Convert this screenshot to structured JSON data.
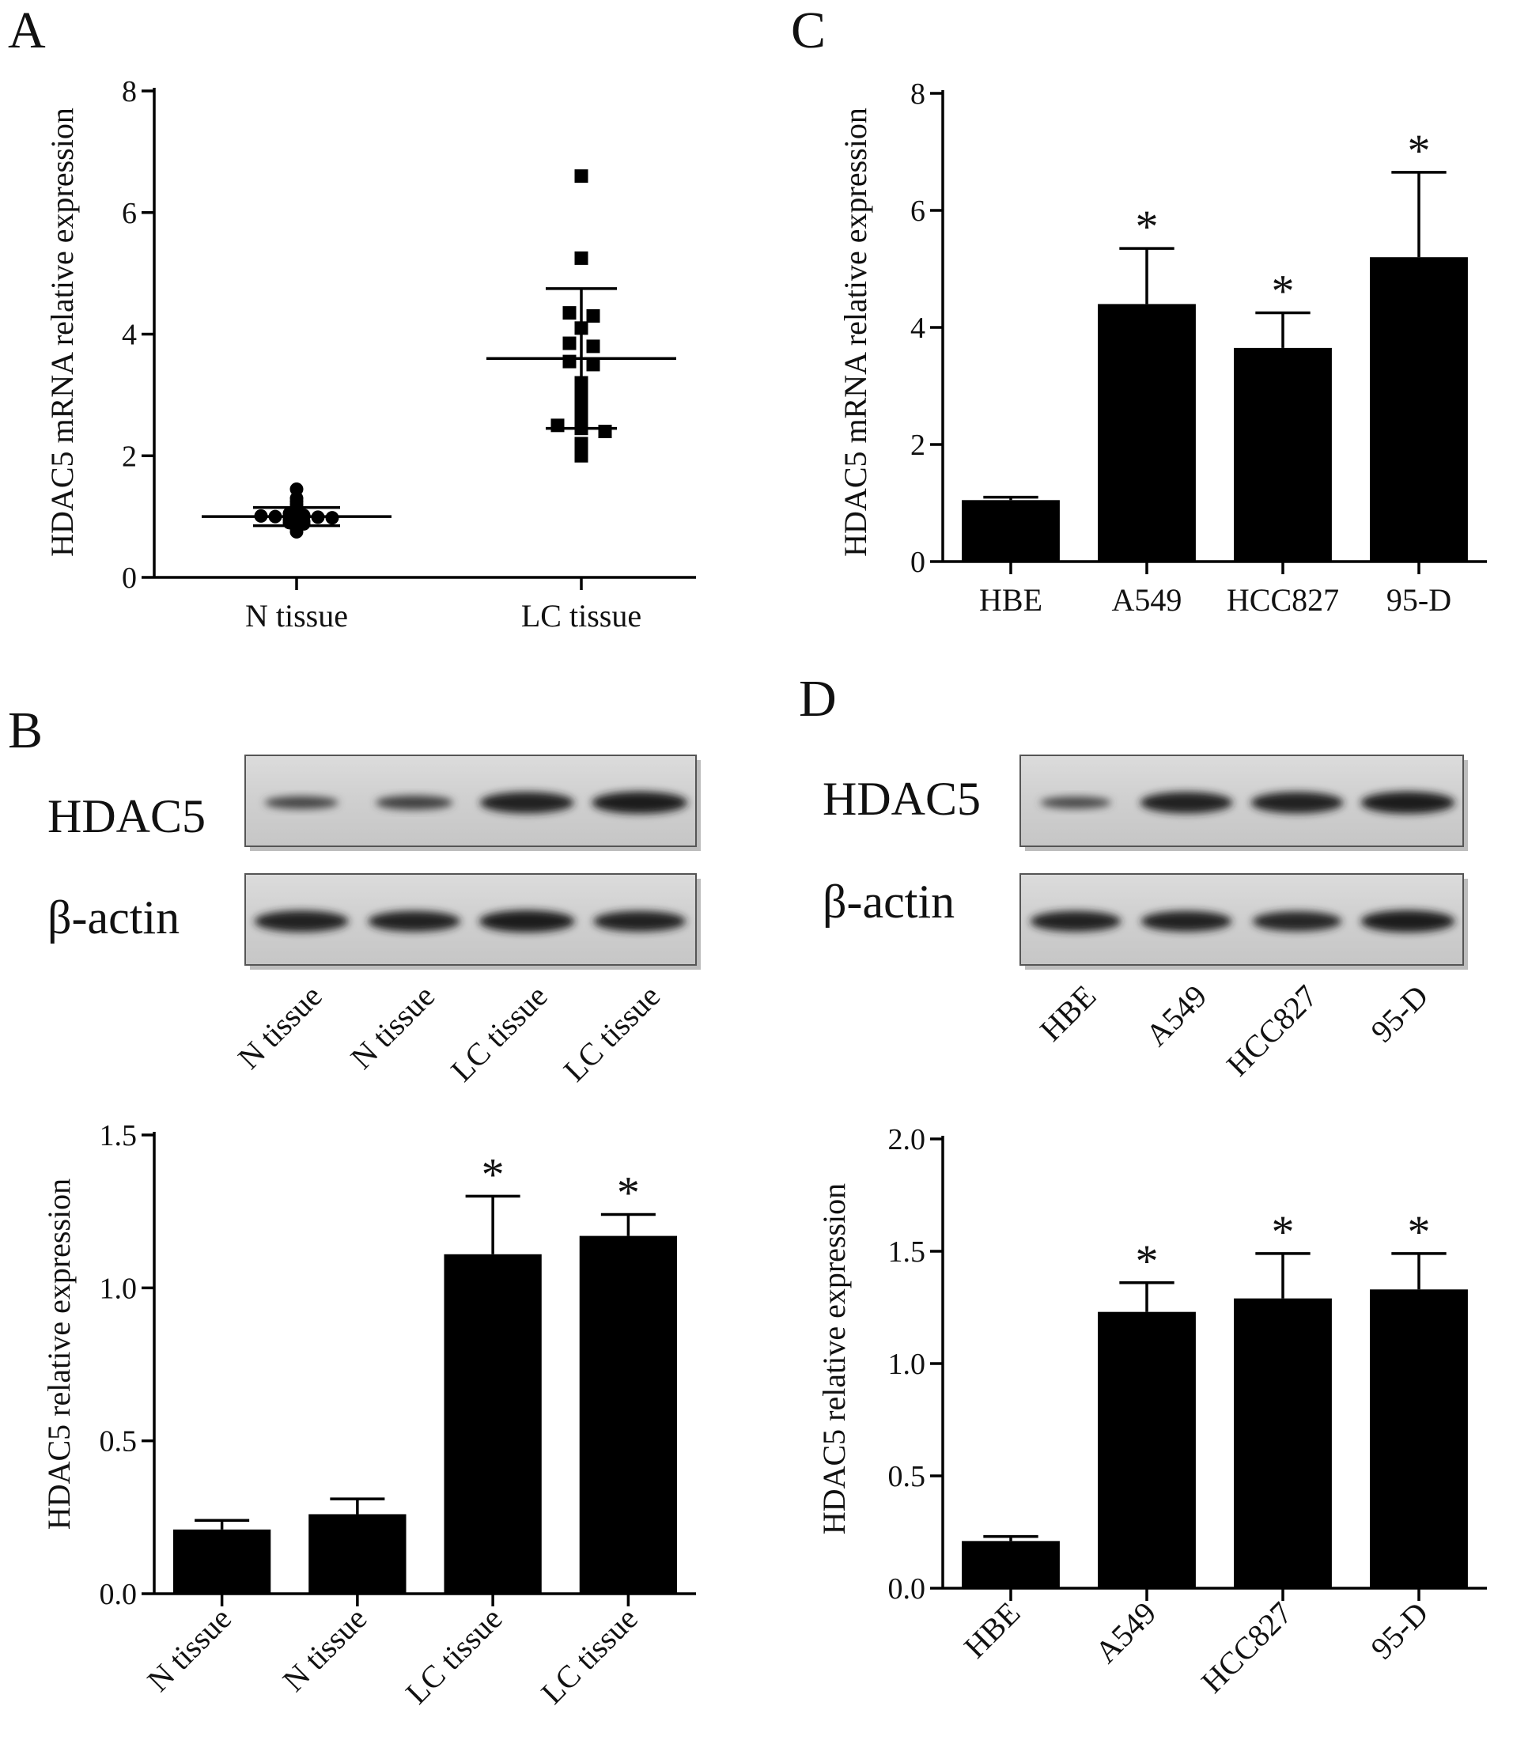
{
  "panels": {
    "A": "A",
    "B": "B",
    "C": "C",
    "D": "D"
  },
  "colors": {
    "bar": "#000000",
    "blot_bg": "#d2d2d2",
    "band": "#101010"
  },
  "chart_data": [
    {
      "panel": "A",
      "type": "scatter",
      "categories": [
        "N tissue",
        "LC tissue"
      ],
      "ylabel": "HDAC5 mRNA  relative  expression",
      "ylim": [
        0,
        8
      ],
      "yticks": [
        0,
        2,
        4,
        6,
        8
      ],
      "series": [
        {
          "marker": "circle",
          "category": "N tissue",
          "values": [
            1.45,
            1.3,
            1.25,
            1.2,
            1.15,
            1.1,
            1.05,
            1.02,
            1.01,
            1.0,
            1.0,
            1.0,
            0.99,
            0.98,
            0.95,
            0.92,
            0.9,
            0.88,
            0.85,
            0.8,
            0.75
          ],
          "mean": 1.0,
          "sd": 0.15
        },
        {
          "marker": "square",
          "category": "LC tissue",
          "values": [
            6.6,
            5.25,
            4.35,
            4.3,
            4.1,
            3.85,
            3.8,
            3.55,
            3.5,
            3.2,
            3.0,
            2.8,
            2.65,
            2.5,
            2.45,
            2.4,
            2.2,
            2.0
          ],
          "mean": 3.6,
          "sd": 1.15
        }
      ]
    },
    {
      "panel": "B",
      "type": "bar",
      "blot": {
        "rows": [
          "HDAC5",
          "β-actin"
        ],
        "lanes": [
          "N tissue",
          "N tissue",
          "LC tissue",
          "LC tissue"
        ],
        "band_strength": {
          "HDAC5": [
            0.35,
            0.45,
            0.95,
            1.0
          ],
          "β-actin": [
            0.95,
            0.9,
            1.0,
            0.9
          ]
        }
      },
      "categories": [
        "N tissue",
        "N tissue",
        "LC tissue",
        "LC tissue"
      ],
      "values": [
        0.21,
        0.26,
        1.11,
        1.17
      ],
      "errors": [
        0.03,
        0.05,
        0.19,
        0.07
      ],
      "significance": [
        "",
        "",
        "*",
        "*"
      ],
      "ylabel": "HDAC5  relative  expression",
      "ylim": [
        0,
        1.5
      ],
      "yticks": [
        "0.0",
        "0.5",
        "1.0",
        "1.5"
      ]
    },
    {
      "panel": "C",
      "type": "bar",
      "categories": [
        "HBE",
        "A549",
        "HCC827",
        "95-D"
      ],
      "values": [
        1.05,
        4.4,
        3.65,
        5.2
      ],
      "errors": [
        0.05,
        0.95,
        0.6,
        1.45
      ],
      "significance": [
        "",
        "*",
        "*",
        "*"
      ],
      "ylabel": "HDAC5 mRNA  relative  expression",
      "ylim": [
        0,
        8
      ],
      "yticks": [
        "0",
        "2",
        "4",
        "6",
        "8"
      ]
    },
    {
      "panel": "D",
      "type": "bar",
      "blot": {
        "rows": [
          "HDAC5",
          "β-actin"
        ],
        "lanes": [
          "HBE",
          "A549",
          "HCC827",
          "95-D"
        ],
        "band_strength": {
          "HDAC5": [
            0.3,
            0.95,
            0.95,
            1.0
          ],
          "β-actin": [
            0.9,
            0.9,
            0.85,
            1.0
          ]
        }
      },
      "categories": [
        "HBE",
        "A549",
        "HCC827",
        "95-D"
      ],
      "values": [
        0.21,
        1.23,
        1.29,
        1.33
      ],
      "errors": [
        0.02,
        0.13,
        0.2,
        0.16
      ],
      "significance": [
        "",
        "*",
        "*",
        "*"
      ],
      "ylabel": "HDAC5  relative  expression",
      "ylim": [
        0,
        2.0
      ],
      "yticks": [
        "0.0",
        "0.5",
        "1.0",
        "1.5",
        "2.0"
      ]
    }
  ]
}
